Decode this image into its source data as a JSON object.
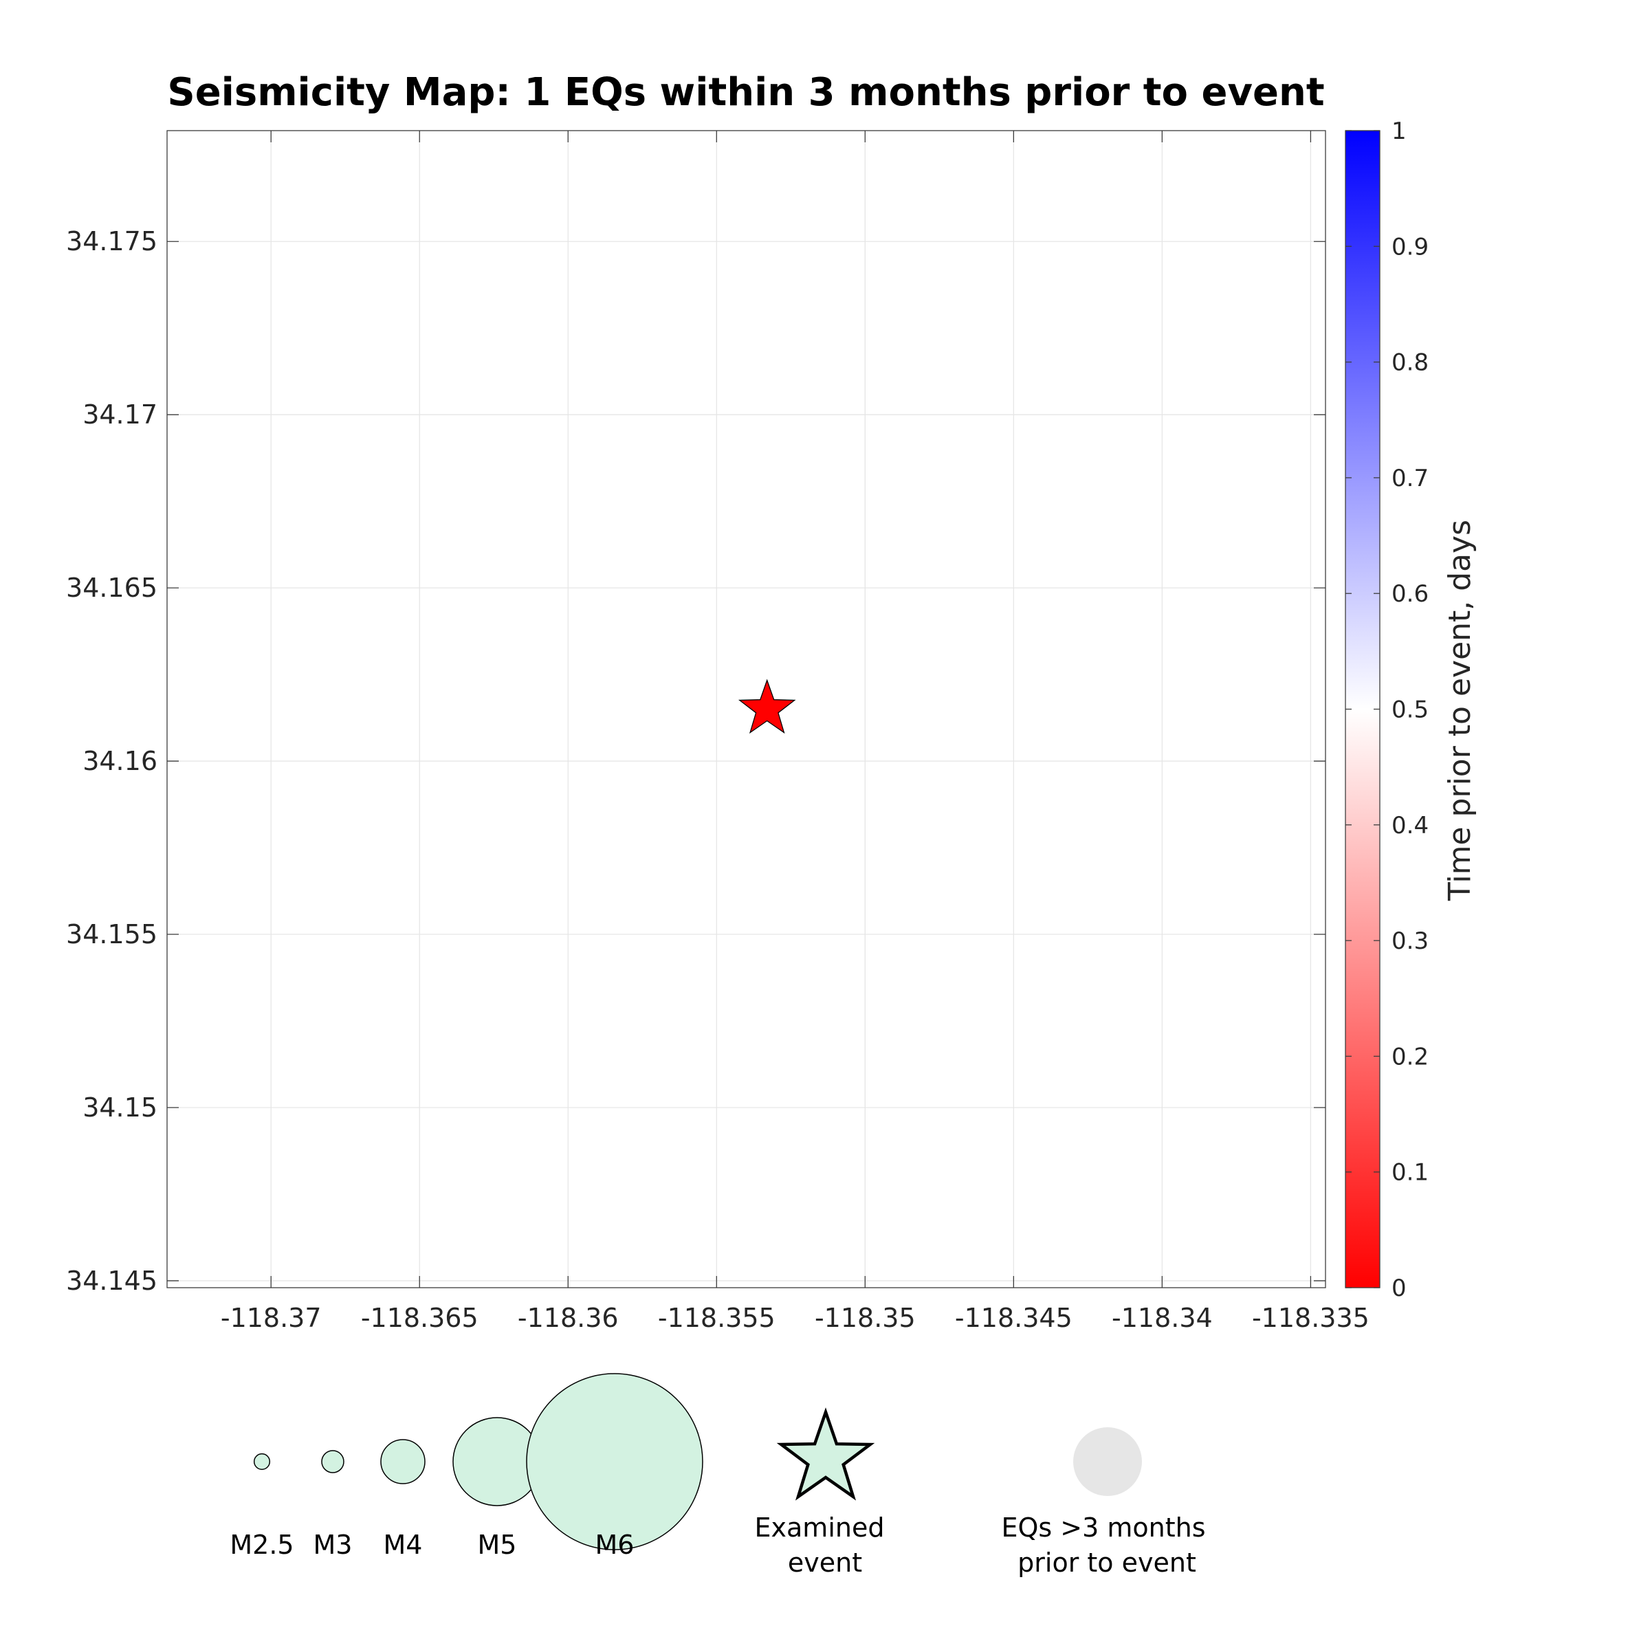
{
  "chart_data": {
    "type": "scatter",
    "title": "Seismicity Map: 1 EQs within 3 months prior to event",
    "xlim": [
      -118.3735,
      -118.3345
    ],
    "ylim": [
      34.1448,
      34.1782
    ],
    "x_ticks": [
      -118.37,
      -118.365,
      -118.36,
      -118.355,
      -118.35,
      -118.345,
      -118.34,
      -118.335
    ],
    "y_ticks": [
      34.145,
      34.15,
      34.155,
      34.16,
      34.165,
      34.17,
      34.175
    ],
    "x_tick_labels": [
      "-118.37",
      "-118.365",
      "-118.36",
      "-118.355",
      "-118.35",
      "-118.345",
      "-118.34",
      "-118.335"
    ],
    "y_tick_labels": [
      "34.145",
      "34.15",
      "34.155",
      "34.16",
      "34.165",
      "34.17",
      "34.175"
    ],
    "grid": true,
    "series": [
      {
        "marker": "star",
        "color": "#ff0000",
        "points": [
          {
            "x": -118.3533,
            "y": 34.1615,
            "time_prior_days": 0
          }
        ]
      }
    ],
    "colorbar": {
      "label": "Time prior to event, days",
      "range": [
        0,
        1
      ],
      "ticks": [
        0,
        0.1,
        0.2,
        0.3,
        0.4,
        0.5,
        0.6,
        0.7,
        0.8,
        0.9,
        1
      ],
      "tick_labels": [
        "0",
        "0.1",
        "0.2",
        "0.3",
        "0.4",
        "0.5",
        "0.6",
        "0.7",
        "0.8",
        "0.9",
        "1"
      ],
      "colors": [
        "#ff0000",
        "#ffffff",
        "#0000ff"
      ]
    },
    "size_legend": {
      "fill": "#d3f2e1",
      "items": [
        {
          "label": "M2.5",
          "magnitude": 2.5
        },
        {
          "label": "M3",
          "magnitude": 3
        },
        {
          "label": "M4",
          "magnitude": 4
        },
        {
          "label": "M5",
          "magnitude": 5
        },
        {
          "label": "M6",
          "magnitude": 6
        }
      ],
      "examined_label_line1": "Examined",
      "examined_label_line2": "event",
      "old_label_line1": "EQs >3 months",
      "old_label_line2": "prior to event",
      "old_fill": "#e6e6e6"
    }
  }
}
